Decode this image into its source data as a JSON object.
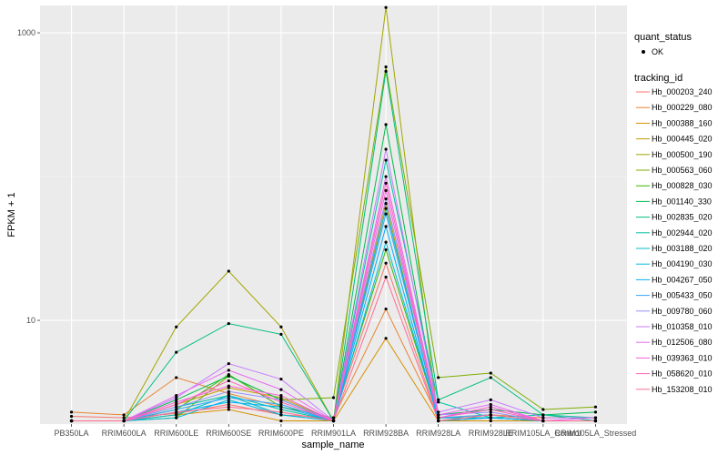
{
  "chart_data": {
    "type": "line",
    "xlabel": "sample_name",
    "ylabel": "FPKM + 1",
    "y_scale": "log10",
    "ylim": [
      1.9,
      1550
    ],
    "y_ticks": [
      10,
      1000
    ],
    "y_tick_labels": [
      "10",
      "1000"
    ],
    "grid": true,
    "legend_position": "right",
    "categories": [
      "PB350LA",
      "RRIM600LA",
      "RRIM600LE",
      "RRIM600SE",
      "RRIM600PE",
      "RRIM901LA",
      "RRIM928BA",
      "RRIM928LA",
      "RRIM928LE",
      "RRIM105LA_Control",
      "RRIM105LA_Stressed"
    ],
    "legend_quant": {
      "title": "quant_status",
      "items": [
        "OK"
      ]
    },
    "legend_tracking_title": "tracking_id",
    "series": [
      {
        "name": "Hb_000203_240",
        "color": "#F8766D",
        "values": [
          2.15,
          2.1,
          2.25,
          2.6,
          2.2,
          2.1,
          25,
          2.0,
          2.1,
          2.0,
          2.0
        ]
      },
      {
        "name": "Hb_000229_080",
        "color": "#EA8331",
        "values": [
          2.3,
          2.2,
          4.0,
          3.1,
          2.5,
          2.1,
          12,
          2.1,
          2.2,
          2.1,
          2.1
        ]
      },
      {
        "name": "Hb_000388_160",
        "color": "#D89000",
        "values": [
          2.0,
          2.0,
          2.2,
          2.4,
          2.0,
          2.0,
          7.5,
          2.0,
          2.0,
          2.0,
          2.0
        ]
      },
      {
        "name": "Hb_000445_020",
        "color": "#C09B00",
        "values": [
          2.0,
          2.0,
          2.6,
          3.4,
          2.9,
          2.0,
          65,
          2.0,
          2.2,
          2.0,
          2.0
        ]
      },
      {
        "name": "Hb_000500_190",
        "color": "#A3A500",
        "values": [
          2.0,
          2.0,
          9.0,
          22,
          9.0,
          2.0,
          1500,
          2.0,
          2.1,
          2.0,
          2.0
        ]
      },
      {
        "name": "Hb_000563_060",
        "color": "#7CAE00",
        "values": [
          2.0,
          2.0,
          2.1,
          4.1,
          2.8,
          2.9,
          580,
          4.0,
          4.3,
          2.4,
          2.5
        ]
      },
      {
        "name": "Hb_000828_030",
        "color": "#39B600",
        "values": [
          2.0,
          2.0,
          2.4,
          4.2,
          2.5,
          2.1,
          31,
          2.1,
          2.1,
          2.0,
          2.0
        ]
      },
      {
        "name": "Hb_001140_330",
        "color": "#00BB4E",
        "values": [
          2.0,
          2.0,
          2.8,
          4.1,
          2.8,
          2.0,
          230,
          2.2,
          2.4,
          2.2,
          2.3
        ]
      },
      {
        "name": "Hb_002835_020",
        "color": "#00BF7D",
        "values": [
          2.0,
          2.0,
          6.0,
          9.5,
          8.0,
          2.0,
          540,
          2.8,
          4.0,
          2.2,
          2.0
        ]
      },
      {
        "name": "Hb_002944_020",
        "color": "#00C1A3",
        "values": [
          2.0,
          2.0,
          2.5,
          3.0,
          2.4,
          2.0,
          130,
          2.7,
          2.1,
          2.2,
          2.1
        ]
      },
      {
        "name": "Hb_003188_020",
        "color": "#00BFC4",
        "values": [
          2.0,
          2.0,
          2.2,
          3.0,
          2.2,
          2.0,
          60,
          2.1,
          2.1,
          2.0,
          2.0
        ]
      },
      {
        "name": "Hb_004190_030",
        "color": "#00BAE0",
        "values": [
          2.0,
          2.0,
          2.1,
          2.8,
          2.2,
          2.0,
          35,
          2.1,
          2.1,
          2.0,
          2.0
        ]
      },
      {
        "name": "Hb_004267_050",
        "color": "#00B0F6",
        "values": [
          2.0,
          2.0,
          2.3,
          2.7,
          2.5,
          2.0,
          45,
          2.0,
          2.1,
          2.0,
          2.0
        ]
      },
      {
        "name": "Hb_005433_050",
        "color": "#35A2FF",
        "values": [
          2.0,
          2.0,
          2.4,
          2.9,
          2.6,
          2.0,
          55,
          2.1,
          2.2,
          2.0,
          2.0
        ]
      },
      {
        "name": "Hb_009780_060",
        "color": "#9590FF",
        "values": [
          2.0,
          2.0,
          2.5,
          3.2,
          2.8,
          2.0,
          70,
          2.2,
          2.3,
          2.0,
          2.0
        ]
      },
      {
        "name": "Hb_010358_010",
        "color": "#C77CFF",
        "values": [
          2.0,
          2.0,
          2.9,
          5.0,
          3.9,
          2.0,
          155,
          2.3,
          2.8,
          2.1,
          2.1
        ]
      },
      {
        "name": "Hb_012506_080",
        "color": "#E76BF3",
        "values": [
          2.0,
          2.0,
          3.0,
          4.5,
          3.3,
          2.0,
          100,
          2.2,
          2.6,
          2.0,
          2.1
        ]
      },
      {
        "name": "Hb_039363_010",
        "color": "#FA62DB",
        "values": [
          2.0,
          2.0,
          2.7,
          3.5,
          3.0,
          2.0,
          80,
          2.1,
          2.5,
          2.0,
          2.0
        ]
      },
      {
        "name": "Hb_058620_010",
        "color": "#FF62BC",
        "values": [
          2.0,
          2.0,
          2.6,
          3.8,
          2.7,
          2.0,
          90,
          2.1,
          2.4,
          2.0,
          2.0
        ]
      },
      {
        "name": "Hb_153208_010",
        "color": "#FF6C91",
        "values": [
          2.0,
          2.0,
          2.3,
          2.5,
          2.3,
          2.0,
          20,
          2.0,
          2.2,
          2.0,
          2.0
        ]
      }
    ]
  }
}
